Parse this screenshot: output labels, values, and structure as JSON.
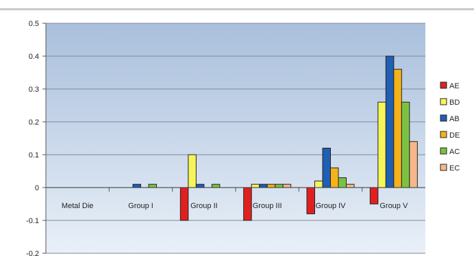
{
  "chart_data": {
    "type": "bar",
    "categories": [
      "Metal Die",
      "Group I",
      "Group II",
      "Group III",
      "Group IV",
      "Group V"
    ],
    "series": [
      {
        "name": "AE",
        "color": "#e02020",
        "values": [
          0,
          0,
          -0.1,
          -0.1,
          -0.08,
          -0.05
        ]
      },
      {
        "name": "BD",
        "color": "#f5f55a",
        "values": [
          0,
          0,
          0.1,
          0.01,
          0.02,
          0.26
        ]
      },
      {
        "name": "AB",
        "color": "#1f5fb4",
        "values": [
          0,
          0.01,
          0.01,
          0.01,
          0.12,
          0.4
        ]
      },
      {
        "name": "DE",
        "color": "#f5b21a",
        "values": [
          0,
          0,
          0,
          0.01,
          0.06,
          0.36
        ]
      },
      {
        "name": "AC",
        "color": "#7cc242",
        "values": [
          0,
          0.01,
          0.01,
          0.01,
          0.03,
          0.26
        ]
      },
      {
        "name": "EC",
        "color": "#f5b88a",
        "values": [
          0,
          0,
          0,
          0.01,
          0.01,
          0.14
        ]
      }
    ],
    "yticks": [
      "0.5",
      "0.4",
      "0.3",
      "0.2",
      "0.1",
      "0",
      "-0.1",
      "-0.2"
    ],
    "ylim": [
      -0.2,
      0.5
    ],
    "grid": true,
    "legend": "right",
    "title": "",
    "xlabel": "",
    "ylabel": ""
  }
}
